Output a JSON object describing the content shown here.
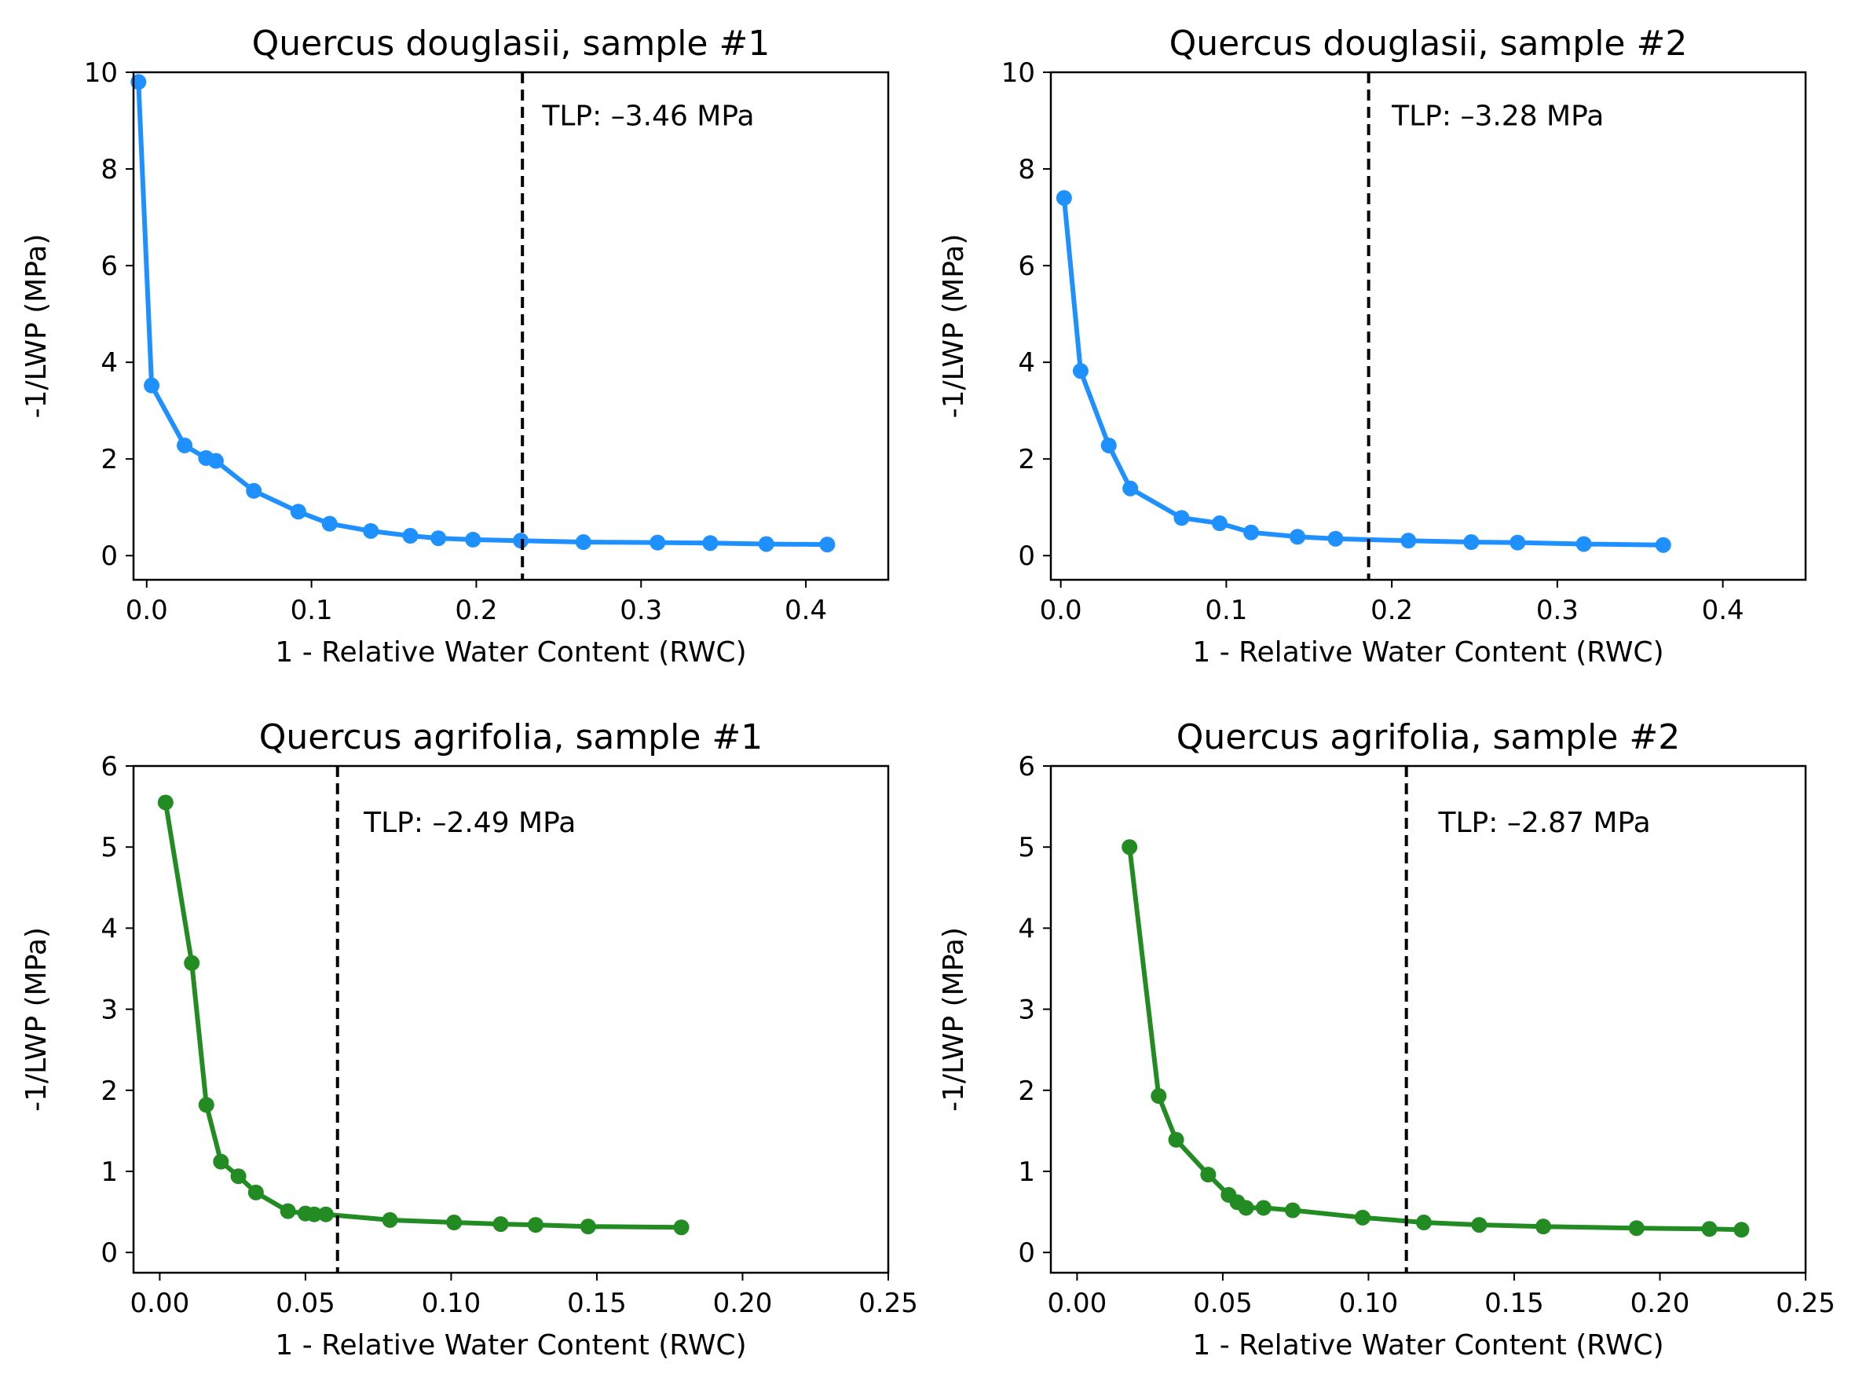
{
  "chart_data": [
    {
      "type": "line",
      "title": "Quercus douglasii, sample #1",
      "xlabel": "1 - Relative Water Content (RWC)",
      "ylabel": "-1/LWP (MPa)",
      "xlim": [
        -0.008,
        0.45
      ],
      "ylim": [
        -0.5,
        10
      ],
      "xticks": [
        0.0,
        0.1,
        0.2,
        0.3,
        0.4
      ],
      "xtick_labels": [
        "0.0",
        "0.1",
        "0.2",
        "0.3",
        "0.4"
      ],
      "yticks": [
        0,
        2,
        4,
        6,
        8,
        10
      ],
      "ytick_labels": [
        "0",
        "2",
        "4",
        "6",
        "8",
        "10"
      ],
      "color": "#1e90ff",
      "grid": false,
      "x": [
        -0.005,
        0.003,
        0.023,
        0.036,
        0.042,
        0.065,
        0.092,
        0.111,
        0.136,
        0.16,
        0.177,
        0.198,
        0.227,
        0.265,
        0.31,
        0.342,
        0.376,
        0.413
      ],
      "y": [
        9.8,
        3.52,
        2.28,
        2.02,
        1.96,
        1.34,
        0.91,
        0.66,
        0.51,
        0.41,
        0.36,
        0.33,
        0.31,
        0.28,
        0.27,
        0.26,
        0.24,
        0.23
      ],
      "vline": {
        "x": 0.228,
        "style": "dashed"
      },
      "annotation": {
        "text": "TLP: –3.46 MPa",
        "x": 0.24,
        "y": 9.1
      }
    },
    {
      "type": "line",
      "title": "Quercus douglasii, sample #2",
      "xlabel": "1 - Relative Water Content (RWC)",
      "ylabel": "-1/LWP (MPa)",
      "xlim": [
        -0.006,
        0.45
      ],
      "ylim": [
        -0.5,
        10
      ],
      "xticks": [
        0.0,
        0.1,
        0.2,
        0.3,
        0.4
      ],
      "xtick_labels": [
        "0.0",
        "0.1",
        "0.2",
        "0.3",
        "0.4"
      ],
      "yticks": [
        0,
        2,
        4,
        6,
        8,
        10
      ],
      "ytick_labels": [
        "0",
        "2",
        "4",
        "6",
        "8",
        "10"
      ],
      "color": "#1e90ff",
      "grid": false,
      "x": [
        0.002,
        0.012,
        0.029,
        0.042,
        0.073,
        0.096,
        0.115,
        0.143,
        0.166,
        0.21,
        0.248,
        0.276,
        0.316,
        0.364
      ],
      "y": [
        7.4,
        3.82,
        2.28,
        1.39,
        0.78,
        0.67,
        0.48,
        0.39,
        0.35,
        0.31,
        0.28,
        0.27,
        0.24,
        0.22
      ],
      "vline": {
        "x": 0.186,
        "style": "dashed"
      },
      "annotation": {
        "text": "TLP: –3.28 MPa",
        "x": 0.2,
        "y": 9.1
      }
    },
    {
      "type": "line",
      "title": "Quercus agrifolia, sample #1",
      "xlabel": "1 - Relative Water Content (RWC)",
      "ylabel": "-1/LWP (MPa)",
      "xlim": [
        -0.009,
        0.25
      ],
      "ylim": [
        -0.25,
        6
      ],
      "xticks": [
        0.0,
        0.05,
        0.1,
        0.15,
        0.2,
        0.25
      ],
      "xtick_labels": [
        "0.00",
        "0.05",
        "0.10",
        "0.15",
        "0.20",
        "0.25"
      ],
      "yticks": [
        0,
        1,
        2,
        3,
        4,
        5,
        6
      ],
      "ytick_labels": [
        "0",
        "1",
        "2",
        "3",
        "4",
        "5",
        "6"
      ],
      "color": "#228b22",
      "grid": false,
      "x": [
        0.002,
        0.011,
        0.016,
        0.021,
        0.027,
        0.033,
        0.044,
        0.05,
        0.053,
        0.057,
        0.079,
        0.101,
        0.117,
        0.129,
        0.147,
        0.179
      ],
      "y": [
        5.55,
        3.57,
        1.82,
        1.12,
        0.94,
        0.74,
        0.51,
        0.48,
        0.47,
        0.47,
        0.4,
        0.37,
        0.35,
        0.34,
        0.32,
        0.31
      ],
      "vline": {
        "x": 0.061,
        "style": "dashed"
      },
      "annotation": {
        "text": "TLP: –2.49 MPa",
        "x": 0.07,
        "y": 5.3
      }
    },
    {
      "type": "line",
      "title": "Quercus agrifolia, sample #2",
      "xlabel": "1 - Relative Water Content (RWC)",
      "ylabel": "-1/LWP (MPa)",
      "xlim": [
        -0.009,
        0.25
      ],
      "ylim": [
        -0.25,
        6
      ],
      "xticks": [
        0.0,
        0.05,
        0.1,
        0.15,
        0.2,
        0.25
      ],
      "xtick_labels": [
        "0.00",
        "0.05",
        "0.10",
        "0.15",
        "0.20",
        "0.25"
      ],
      "yticks": [
        0,
        1,
        2,
        3,
        4,
        5,
        6
      ],
      "ytick_labels": [
        "0",
        "1",
        "2",
        "3",
        "4",
        "5",
        "6"
      ],
      "color": "#228b22",
      "grid": false,
      "x": [
        0.018,
        0.028,
        0.034,
        0.045,
        0.052,
        0.055,
        0.058,
        0.064,
        0.074,
        0.098,
        0.119,
        0.138,
        0.16,
        0.192,
        0.217,
        0.228
      ],
      "y": [
        5.0,
        1.93,
        1.39,
        0.96,
        0.71,
        0.62,
        0.55,
        0.55,
        0.52,
        0.43,
        0.37,
        0.34,
        0.32,
        0.3,
        0.29,
        0.28
      ],
      "vline": {
        "x": 0.113,
        "style": "dashed"
      },
      "annotation": {
        "text": "TLP: –2.87 MPa",
        "x": 0.124,
        "y": 5.3
      }
    }
  ]
}
